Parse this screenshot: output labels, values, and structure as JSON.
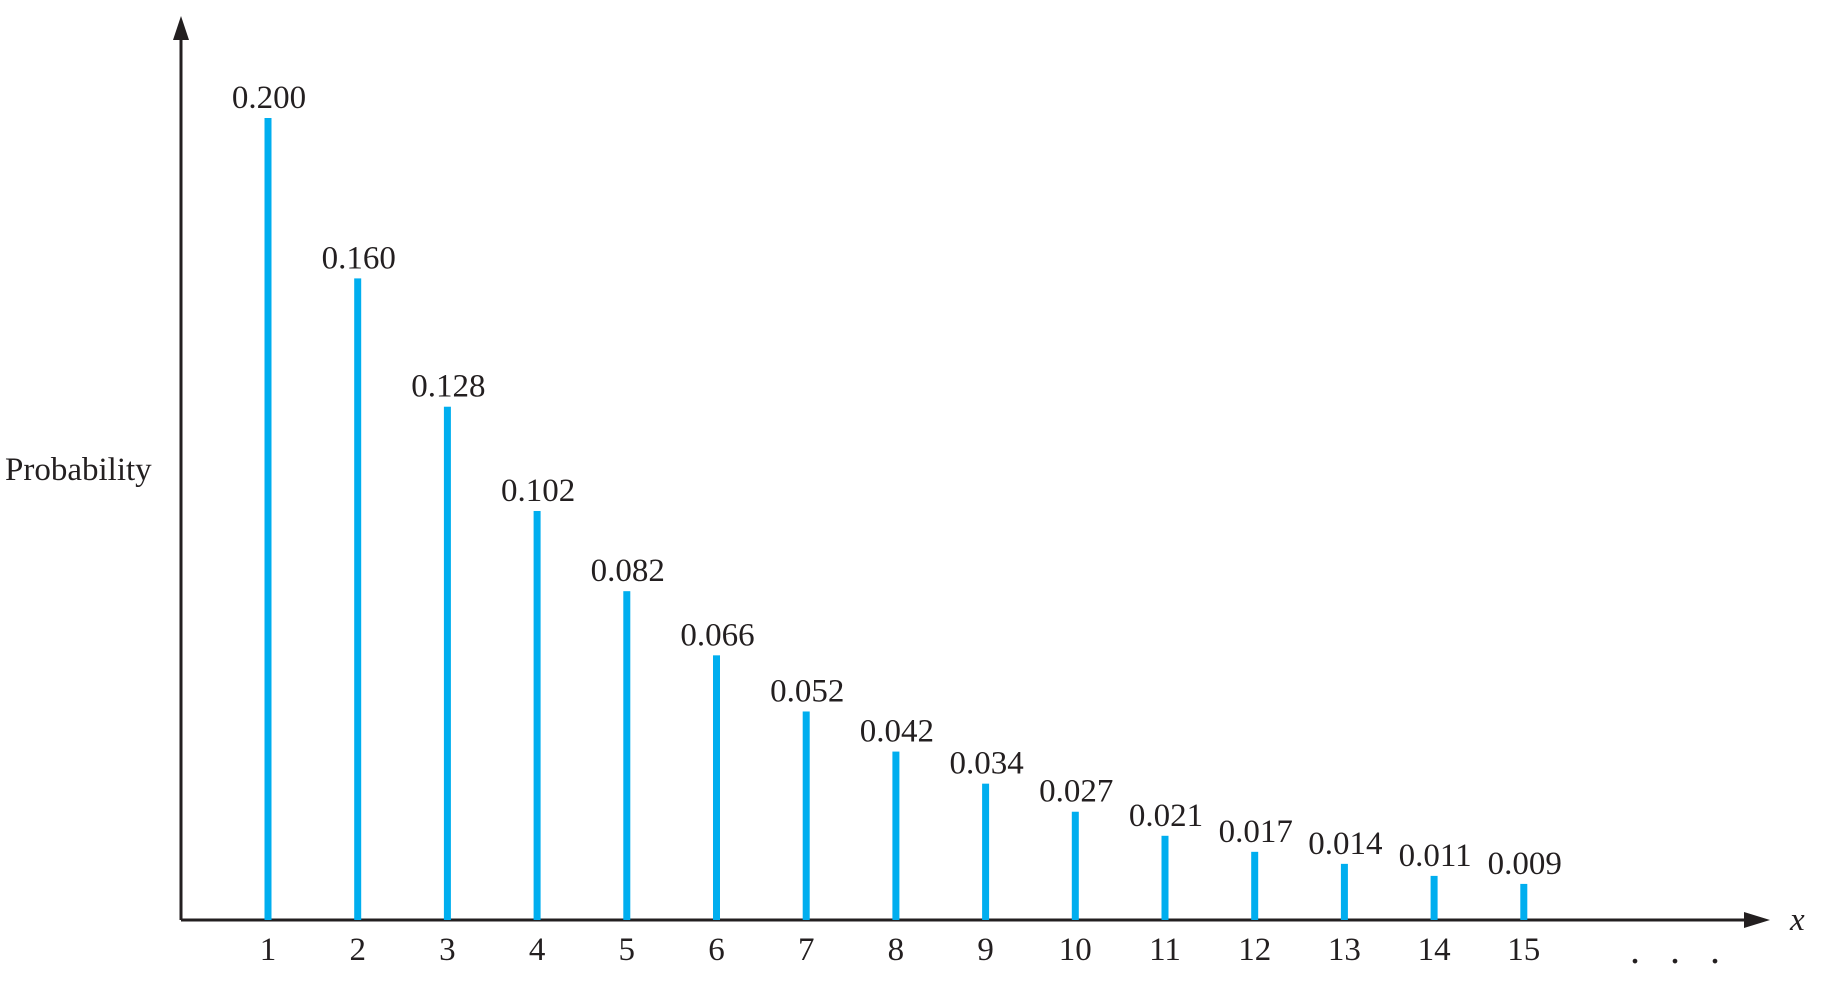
{
  "chart_data": {
    "type": "bar",
    "title": "",
    "xlabel": "x",
    "ylabel": "Probability",
    "categories": [
      "1",
      "2",
      "3",
      "4",
      "5",
      "6",
      "7",
      "8",
      "9",
      "10",
      "11",
      "12",
      "13",
      "14",
      "15"
    ],
    "values": [
      0.2,
      0.16,
      0.128,
      0.102,
      0.082,
      0.066,
      0.052,
      0.042,
      0.034,
      0.027,
      0.021,
      0.017,
      0.014,
      0.011,
      0.009
    ],
    "value_labels": [
      "0.200",
      "0.160",
      "0.128",
      "0.102",
      "0.082",
      "0.066",
      "0.052",
      "0.042",
      "0.034",
      "0.027",
      "0.021",
      "0.017",
      "0.014",
      "0.011",
      "0.009"
    ],
    "continuation": ". . .",
    "ylim": [
      0,
      0.2
    ],
    "grid": false,
    "bar_color": "#00aeef",
    "axis_color": "#231f20"
  }
}
